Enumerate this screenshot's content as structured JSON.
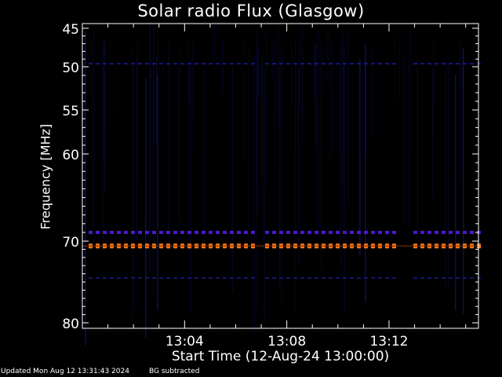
{
  "chart_data": {
    "type": "heatmap",
    "title": "Solar radio Flux (Glasgow)",
    "xlabel": "Start Time (12-Aug-24 13:00:00)",
    "ylabel": "Frequency [MHz]",
    "x_unit": "minutes after 13:00",
    "xlim": [
      0.0,
      15.5
    ],
    "ylim": [
      45,
      80
    ],
    "x_ticks": [
      {
        "value": 4,
        "label": "13:04"
      },
      {
        "value": 8,
        "label": "13:08"
      },
      {
        "value": 12,
        "label": "13:12"
      }
    ],
    "y_ticks": [
      {
        "value": 45,
        "label": "45"
      },
      {
        "value": 50,
        "label": "50"
      },
      {
        "value": 55,
        "label": "55"
      },
      {
        "value": 60,
        "label": "60"
      },
      {
        "value": 70,
        "label": "70"
      },
      {
        "value": 80,
        "label": "80"
      }
    ],
    "y_tick_positions": [
      45,
      50,
      55,
      60,
      70,
      80
    ],
    "background_color": "#000000",
    "bands": [
      {
        "freq_mhz": 49.6,
        "color": "#1a1aa0",
        "intensity": "weak"
      },
      {
        "freq_mhz": 69.0,
        "color": "#4a1acc",
        "intensity": "moderate"
      },
      {
        "freq_mhz": 70.6,
        "color": "#ff7a1a",
        "intensity": "strong"
      },
      {
        "freq_mhz": 74.5,
        "color": "#1a1a90",
        "intensity": "weak"
      }
    ],
    "gaps_minutes": [
      [
        6.8,
        7.1
      ],
      [
        12.3,
        12.9
      ]
    ]
  },
  "footer": {
    "updated": "Updated Mon Aug 12 13:31:43 2024",
    "note": "BG subtracted"
  }
}
